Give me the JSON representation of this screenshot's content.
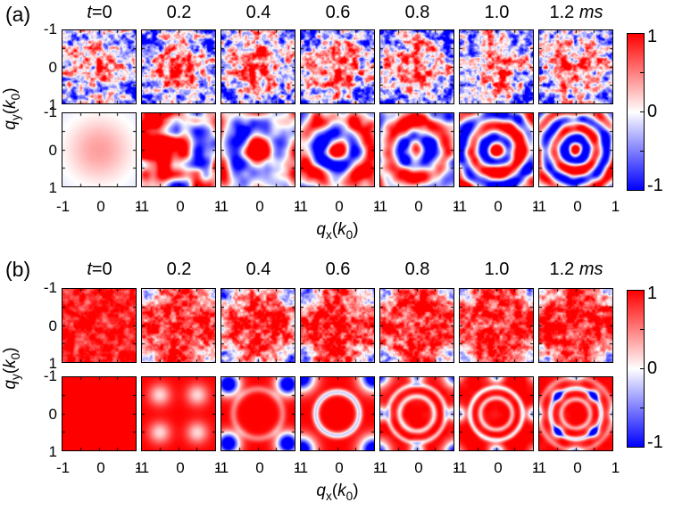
{
  "figure": {
    "background": "#ffffff",
    "description": "Two-panel physics figure: time evolution of 2D momentum-space maps q_y vs q_x at t = 0 to 1.2 ms. Each panel has an upper row (noisy measured maps) and a lower row (smooth calculated maps), with a shared diverging red-white-blue colorbar from 1 to -1."
  },
  "colormap": {
    "positive_color": "#ff0000",
    "zero_color": "#ffffff",
    "negative_color": "#0000ff",
    "range": [
      -1,
      1
    ]
  },
  "chart_data": [
    {
      "panel_label": "(a)",
      "type": "heatmap",
      "times_ms": [
        0,
        0.2,
        0.4,
        0.6,
        0.8,
        1.0,
        1.2
      ],
      "time_labels": [
        "t=0",
        "0.2",
        "0.4",
        "0.6",
        "0.8",
        "1.0",
        "1.2 ms"
      ],
      "time_labels_html": [
        "<i>t</i>=0",
        "0.2",
        "0.4",
        "0.6",
        "0.8",
        "1.0",
        "1.2 <i>ms</i>"
      ],
      "xlabel": "qx(k0)",
      "xlabel_html": "<i>q</i><sub>x</sub>(<i>k</i><sub>0</sub>)",
      "ylabel": "qy(k0)",
      "ylabel_html": "<i>q</i><sub>y</sub>(<i>k</i><sub>0</sub>)",
      "x_tick_labels": [
        "-1",
        "0",
        "1"
      ],
      "y_tick_labels": [
        "-1",
        "0",
        "1"
      ],
      "x_range": [
        -1,
        1
      ],
      "y_range_top_to_bottom": [
        -1,
        1
      ],
      "colorbar": {
        "tick_labels": [
          "1",
          "0",
          "-1"
        ],
        "max": 1,
        "min": -1
      },
      "rows": [
        {
          "kind": "upper-row-noisy-maps",
          "description": "Speckled measured maps: mottled red positive region around the center, blue patches toward corners and edges; roughly similar at all times.",
          "cells": [
            {
              "base": -0.1,
              "blob": {
                "a": 0.5,
                "s": 0.95
              },
              "sym4": [
                {
                  "d": 0.8,
                  "s": 0.45,
                  "a": -0.35,
                  "diag": true
                }
              ],
              "noise": {
                "a": 1.5,
                "f": 6,
                "oct": 3,
                "seed": 11
              }
            },
            {
              "base": -0.12,
              "blob": {
                "a": 0.75,
                "s": 0.75
              },
              "sym4": [
                {
                  "d": 0.78,
                  "s": 0.45,
                  "a": -0.6,
                  "diag": true
                }
              ],
              "noise": {
                "a": 1.5,
                "f": 6,
                "oct": 3,
                "seed": 12
              }
            },
            {
              "base": -0.12,
              "blob": {
                "a": 0.8,
                "s": 0.78
              },
              "sym4": [
                {
                  "d": 0.8,
                  "s": 0.42,
                  "a": -0.55,
                  "diag": true
                }
              ],
              "noise": {
                "a": 1.5,
                "f": 6,
                "oct": 3,
                "seed": 13
              }
            },
            {
              "base": -0.12,
              "blob": {
                "a": 0.78,
                "s": 0.76
              },
              "sym4": [
                {
                  "d": 0.8,
                  "s": 0.42,
                  "a": -0.55,
                  "diag": true
                }
              ],
              "noise": {
                "a": 1.5,
                "f": 6,
                "oct": 3,
                "seed": 14
              }
            },
            {
              "base": -0.12,
              "blob": {
                "a": 0.8,
                "s": 0.74
              },
              "sym4": [
                {
                  "d": 0.8,
                  "s": 0.42,
                  "a": -0.55,
                  "diag": true
                }
              ],
              "noise": {
                "a": 1.5,
                "f": 6,
                "oct": 3,
                "seed": 15
              }
            },
            {
              "base": -0.12,
              "blob": {
                "a": 0.82,
                "s": 0.76
              },
              "sym4": [
                {
                  "d": 0.8,
                  "s": 0.42,
                  "a": -0.5,
                  "diag": true
                }
              ],
              "noise": {
                "a": 1.5,
                "f": 6,
                "oct": 3,
                "seed": 16
              }
            },
            {
              "base": -0.12,
              "blob": {
                "a": 0.8,
                "s": 0.74
              },
              "sym4": [
                {
                  "d": 0.8,
                  "s": 0.42,
                  "a": -0.5,
                  "diag": true
                }
              ],
              "noise": {
                "a": 1.5,
                "f": 6,
                "oct": 3,
                "seed": 17
              }
            }
          ]
        },
        {
          "kind": "lower-row-smooth-maps",
          "description": "Smooth calculated maps: soft central red peak at t=0; large red/blue domains at 0.2 ms; concentric red rings with blue interstices emerging from the center, rings tightening up to 1.2 ms.",
          "cells": [
            {
              "base": -0.12,
              "blob": {
                "a": 0.5,
                "s": 0.92
              }
            },
            {
              "base": 0.15,
              "noise": {
                "a": 2.4,
                "f": 1.6,
                "oct": 2,
                "seed": 21
              }
            },
            {
              "base": 0.1,
              "wave": {
                "a": 1.1,
                "lam": 1.3,
                "env": 1.4
              },
              "noise": {
                "a": 1.5,
                "f": 1.7,
                "oct": 2,
                "seed": 22
              }
            },
            {
              "base": 0.1,
              "wave": {
                "a": 1.2,
                "lam": 0.95,
                "env": 1.4
              },
              "noise": {
                "a": 1.4,
                "f": 1.8,
                "oct": 2,
                "seed": 23
              }
            },
            {
              "base": 0.1,
              "wave": {
                "a": 1.2,
                "lam": 0.8,
                "env": 1.5
              },
              "noise": {
                "a": 1.3,
                "f": 1.9,
                "oct": 2,
                "seed": 24
              }
            },
            {
              "base": 0.1,
              "wave": {
                "a": 1.3,
                "lam": 0.68,
                "env": 1.6
              },
              "noise": {
                "a": 1.2,
                "f": 2.0,
                "oct": 2,
                "seed": 25
              }
            },
            {
              "base": 0.1,
              "wave": {
                "a": 1.3,
                "lam": 0.58,
                "env": 1.7
              },
              "noise": {
                "a": 1.2,
                "f": 2.0,
                "oct": 2,
                "seed": 26
              }
            }
          ]
        }
      ]
    },
    {
      "panel_label": "(b)",
      "type": "heatmap",
      "times_ms": [
        0,
        0.2,
        0.4,
        0.6,
        0.8,
        1.0,
        1.2
      ],
      "time_labels": [
        "t=0",
        "0.2",
        "0.4",
        "0.6",
        "0.8",
        "1.0",
        "1.2 ms"
      ],
      "time_labels_html": [
        "<i>t</i>=0",
        "0.2",
        "0.4",
        "0.6",
        "0.8",
        "1.0",
        "1.2 <i>ms</i>"
      ],
      "xlabel": "qx(k0)",
      "xlabel_html": "<i>q</i><sub>x</sub>(<i>k</i><sub>0</sub>)",
      "ylabel": "qy(k0)",
      "ylabel_html": "<i>q</i><sub>y</sub>(<i>k</i><sub>0</sub>)",
      "x_tick_labels": [
        "-1",
        "0",
        "1"
      ],
      "y_tick_labels": [
        "-1",
        "0",
        "1"
      ],
      "x_range": [
        -1,
        1
      ],
      "y_range_top_to_bottom": [
        -1,
        1
      ],
      "colorbar": {
        "tick_labels": [
          "1",
          "0",
          "-1"
        ],
        "max": 1,
        "min": -1
      },
      "rows": [
        {
          "kind": "upper-row-noisy-maps",
          "description": "Speckled measured maps: almost uniformly saturated red at t=0; white dips with occasional blue specks grow at the four corners for later times while the center stays red.",
          "cells": [
            {
              "base": 0.88,
              "noise": {
                "a": 0.55,
                "f": 6.5,
                "oct": 3,
                "seed": 31
              }
            },
            {
              "base": 0.85,
              "sym4": [
                {
                  "d": 0.9,
                  "s": 0.4,
                  "a": -1.0,
                  "diag": true
                }
              ],
              "noise": {
                "a": 0.9,
                "f": 6.5,
                "oct": 3,
                "seed": 32
              }
            },
            {
              "base": 0.85,
              "sym4": [
                {
                  "d": 0.92,
                  "s": 0.42,
                  "a": -1.4,
                  "diag": true
                },
                {
                  "d": 1.05,
                  "s": 0.25,
                  "a": -0.8,
                  "diag": false
                }
              ],
              "noise": {
                "a": 0.95,
                "f": 6.5,
                "oct": 3,
                "seed": 33
              }
            },
            {
              "base": 0.85,
              "sym4": [
                {
                  "d": 0.95,
                  "s": 0.42,
                  "a": -1.3,
                  "diag": true
                }
              ],
              "noise": {
                "a": 0.95,
                "f": 6.5,
                "oct": 3,
                "seed": 34
              }
            },
            {
              "base": 0.85,
              "sym4": [
                {
                  "d": 0.95,
                  "s": 0.4,
                  "a": -1.25,
                  "diag": true
                }
              ],
              "noise": {
                "a": 0.95,
                "f": 6.5,
                "oct": 3,
                "seed": 35
              }
            },
            {
              "base": 0.86,
              "sym4": [
                {
                  "d": 0.98,
                  "s": 0.4,
                  "a": -1.2,
                  "diag": true
                }
              ],
              "noise": {
                "a": 0.9,
                "f": 6.5,
                "oct": 3,
                "seed": 36
              }
            },
            {
              "base": 0.86,
              "sym4": [
                {
                  "d": 0.98,
                  "s": 0.4,
                  "a": -1.2,
                  "diag": true
                }
              ],
              "noise": {
                "a": 0.9,
                "f": 6.5,
                "oct": 3,
                "seed": 37
              }
            }
          ]
        },
        {
          "kind": "lower-row-smooth-maps",
          "description": "Smooth calculated maps: uniform red at t=0; four soft white dips at (±0.5,±0.5) at 0.2 ms; deep blue arcs at the corners with a white ring at 0.4–0.6 ms; concentric white rings with small blue spots on diagonals/edges at 0.8–1.2 ms.",
          "cells": [
            {
              "base": 1.0
            },
            {
              "base": 1.0,
              "sym4": [
                {
                  "d": 0.52,
                  "s": 0.3,
                  "a": -0.85,
                  "diag": true
                }
              ]
            },
            {
              "base": 1.0,
              "sym4": [
                {
                  "d": 0.82,
                  "s": 0.3,
                  "a": -2.6,
                  "diag": true
                }
              ],
              "rings": [
                {
                  "r": 0.68,
                  "w": 0.1,
                  "d": -0.5
                }
              ]
            },
            {
              "base": 1.0,
              "sym4": [
                {
                  "d": 1.0,
                  "s": 0.36,
                  "a": -2.6,
                  "diag": true
                }
              ],
              "rings": [
                {
                  "r": 0.6,
                  "w": 0.09,
                  "d": -1.2
                }
              ]
            },
            {
              "base": 1.0,
              "sym4": [
                {
                  "d": 1.05,
                  "s": 0.3,
                  "a": -2.0,
                  "diag": true
                },
                {
                  "d": 1.0,
                  "s": 0.2,
                  "a": -1.4,
                  "diag": false
                }
              ],
              "rings": [
                {
                  "r": 0.48,
                  "w": 0.08,
                  "d": -0.9
                },
                {
                  "r": 0.8,
                  "w": 0.07,
                  "d": -0.8
                }
              ],
              "noise": {
                "a": 0.12,
                "f": 3,
                "oct": 2,
                "seed": 45
              }
            },
            {
              "base": 1.0,
              "sym4": [
                {
                  "d": 1.05,
                  "s": 0.2,
                  "a": -1.6,
                  "diag": false
                },
                {
                  "d": 1.12,
                  "s": 0.24,
                  "a": -1.1,
                  "diag": true
                }
              ],
              "rings": [
                {
                  "r": 0.44,
                  "w": 0.07,
                  "d": -0.8
                },
                {
                  "r": 0.73,
                  "w": 0.07,
                  "d": -1.0
                }
              ],
              "noise": {
                "a": 0.12,
                "f": 3,
                "oct": 2,
                "seed": 46
              }
            },
            {
              "base": 1.0,
              "sym4": [
                {
                  "d": 0.5,
                  "s": 0.15,
                  "a": -1.7,
                  "diag": true
                },
                {
                  "d": 1.08,
                  "s": 0.2,
                  "a": -1.0,
                  "diag": false
                }
              ],
              "rings": [
                {
                  "r": 0.4,
                  "w": 0.07,
                  "d": -0.7
                },
                {
                  "r": 0.7,
                  "w": 0.07,
                  "d": -1.1
                },
                {
                  "r": 1.02,
                  "w": 0.08,
                  "d": -0.5
                }
              ],
              "noise": {
                "a": 0.12,
                "f": 3,
                "oct": 2,
                "seed": 47
              }
            }
          ]
        }
      ]
    }
  ]
}
